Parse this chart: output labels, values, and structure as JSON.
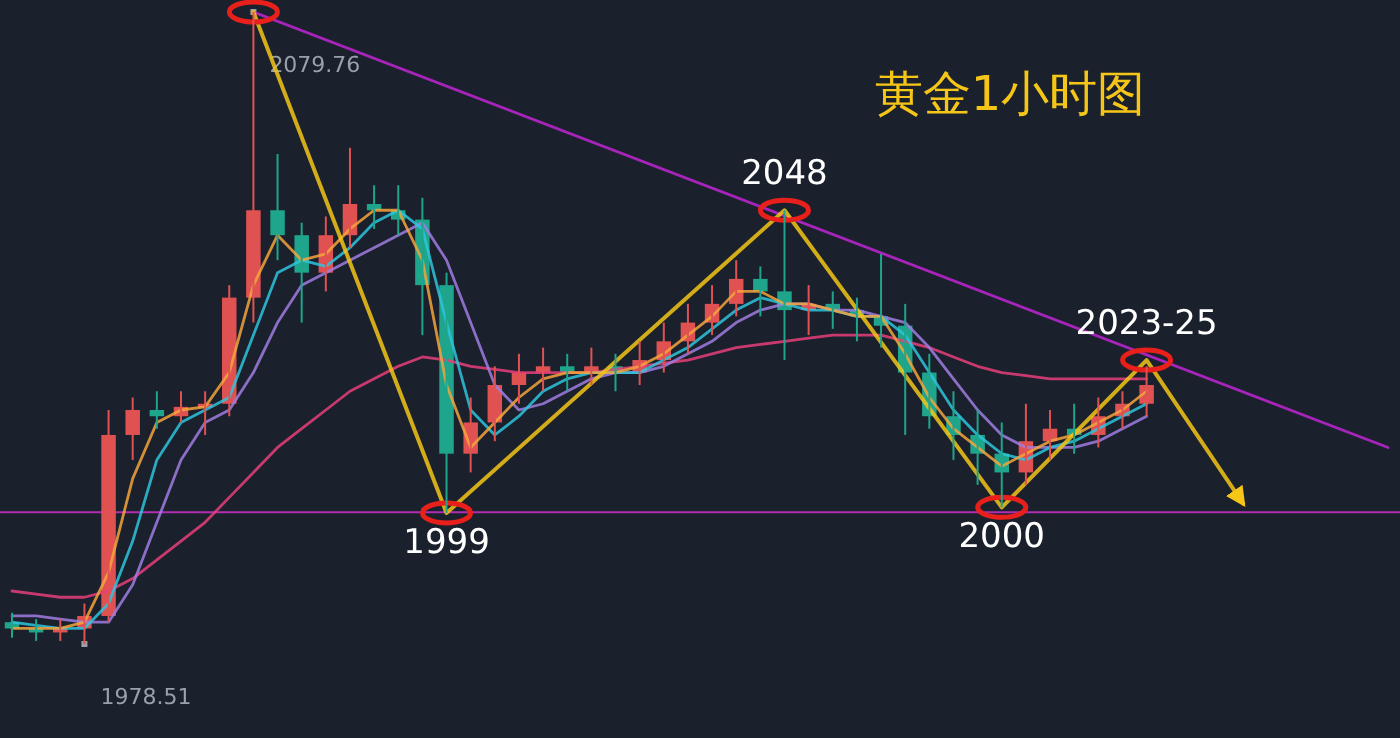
{
  "chart_data": {
    "type": "candlestick",
    "title": "黄金1小时图",
    "categories": [
      null,
      null,
      null,
      null,
      null,
      null,
      null,
      null,
      null,
      null,
      null,
      null,
      null,
      null,
      null,
      null,
      null,
      null,
      null,
      null,
      null,
      null,
      null,
      null,
      null,
      null,
      null,
      null,
      null,
      null,
      null,
      null,
      null,
      null,
      null,
      null,
      null,
      null,
      null,
      null,
      null,
      null,
      null,
      null,
      null,
      null,
      null,
      null,
      null,
      null,
      null,
      null,
      null,
      null,
      null,
      null,
      null,
      null
    ],
    "ohlc": [
      [
        1982,
        1983.5,
        1979.5,
        1981
      ],
      [
        1981,
        1982.5,
        1979,
        1980.5
      ],
      [
        1980.5,
        1982.5,
        1979,
        1981
      ],
      [
        1981,
        1985,
        1978.51,
        1983
      ],
      [
        1983,
        2016,
        1982,
        2012
      ],
      [
        2012,
        2018,
        2008,
        2016
      ],
      [
        2016,
        2019,
        2013,
        2015
      ],
      [
        2015,
        2019,
        2014,
        2016.5
      ],
      [
        2016.5,
        2019,
        2012,
        2017
      ],
      [
        2017,
        2036,
        2015,
        2034
      ],
      [
        2034,
        2079.76,
        2030,
        2048
      ],
      [
        2048,
        2057,
        2040,
        2044
      ],
      [
        2044,
        2046,
        2030,
        2038
      ],
      [
        2038,
        2047,
        2035,
        2044
      ],
      [
        2044,
        2058,
        2042,
        2049
      ],
      [
        2049,
        2052,
        2045,
        2048
      ],
      [
        2048,
        2052,
        2044,
        2046.5
      ],
      [
        2046.5,
        2050,
        2028,
        2036
      ],
      [
        2036,
        2038,
        1999.5,
        2009
      ],
      [
        2009,
        2018,
        2006,
        2014
      ],
      [
        2014,
        2023,
        2011,
        2020
      ],
      [
        2020,
        2025,
        2017,
        2022
      ],
      [
        2022,
        2026,
        2019,
        2023
      ],
      [
        2023,
        2025,
        2019,
        2022
      ],
      [
        2022,
        2026,
        2020,
        2023
      ],
      [
        2023,
        2025,
        2019,
        2022
      ],
      [
        2022,
        2027,
        2020,
        2024
      ],
      [
        2024,
        2030,
        2022,
        2027
      ],
      [
        2027,
        2033,
        2025,
        2030
      ],
      [
        2030,
        2036,
        2028,
        2033
      ],
      [
        2033,
        2040,
        2031,
        2037
      ],
      [
        2037,
        2039,
        2031,
        2035
      ],
      [
        2035,
        2048,
        2024,
        2032
      ],
      [
        2032,
        2036,
        2028,
        2033
      ],
      [
        2033,
        2035,
        2029,
        2032
      ],
      [
        2032,
        2034,
        2027,
        2031
      ],
      [
        2031,
        2041,
        2026,
        2029.5
      ],
      [
        2029.5,
        2033,
        2012,
        2022
      ],
      [
        2022,
        2025,
        2013,
        2015
      ],
      [
        2015,
        2019,
        2008,
        2012
      ],
      [
        2012,
        2016,
        2004,
        2009
      ],
      [
        2009,
        2014,
        2000.4,
        2006
      ],
      [
        2006,
        2017,
        2004,
        2011
      ],
      [
        2011,
        2016,
        2008,
        2013
      ],
      [
        2013,
        2017,
        2009,
        2012
      ],
      [
        2012,
        2018,
        2010,
        2015
      ],
      [
        2015,
        2019,
        2013,
        2017
      ],
      [
        2017,
        2023,
        2015,
        2020
      ],
      null,
      null,
      null,
      null,
      null,
      null,
      null,
      null,
      null,
      null
    ],
    "series": [
      {
        "type": "line",
        "color": "#e8407a",
        "values": [
          1987,
          1986.5,
          1986,
          1986,
          1987,
          1989,
          1992,
          1995,
          1998,
          2002,
          2006,
          2010,
          2013,
          2016,
          2019,
          2021,
          2023,
          2024.5,
          2024,
          2023,
          2022.5,
          2022,
          2022,
          2022,
          2022,
          2022.5,
          2023,
          2023.5,
          2024,
          2025,
          2026,
          2026.5,
          2027,
          2027.5,
          2028,
          2028,
          2028,
          2027,
          2026,
          2024.5,
          2023,
          2022,
          2021.5,
          2021,
          2021,
          2021,
          2021,
          2021,
          null,
          null,
          null,
          null,
          null,
          null,
          null,
          null,
          null,
          null
        ]
      },
      {
        "type": "line",
        "color": "#a07ce0",
        "values": [
          1983,
          1983,
          1982.5,
          1982,
          1982,
          1988,
          1998,
          2008,
          2014,
          2016,
          2022,
          2030,
          2036,
          2038,
          2040,
          2042,
          2044,
          2046,
          2040,
          2030,
          2020,
          2016,
          2017,
          2019,
          2021,
          2022,
          2022,
          2023,
          2025,
          2027,
          2030,
          2032,
          2033,
          2033,
          2032,
          2032,
          2031,
          2030,
          2026,
          2021,
          2016,
          2012,
          2010,
          2010,
          2010,
          2011,
          2013,
          2015,
          null,
          null,
          null,
          null,
          null,
          null,
          null,
          null,
          null,
          null
        ]
      },
      {
        "type": "line",
        "color": "#2ec4dc",
        "values": [
          1982,
          1981.5,
          1981,
          1981,
          1985,
          1995,
          2008,
          2014,
          2016,
          2018,
          2028,
          2038,
          2040,
          2039,
          2042,
          2046,
          2048,
          2045,
          2030,
          2016,
          2012,
          2015,
          2019,
          2021,
          2022,
          2022,
          2022,
          2024,
          2026,
          2029,
          2032,
          2034,
          2033,
          2032,
          2032,
          2031,
          2031,
          2028,
          2022,
          2016,
          2012,
          2009,
          2008,
          2010,
          2011,
          2013,
          2015,
          2017,
          null,
          null,
          null,
          null,
          null,
          null,
          null,
          null,
          null,
          null
        ]
      },
      {
        "type": "line",
        "color": "#f5a53c",
        "values": [
          1981,
          1981,
          1981,
          1982,
          1990,
          2005,
          2014,
          2016,
          2016.5,
          2022,
          2036,
          2044,
          2040,
          2041,
          2045,
          2048,
          2048,
          2040,
          2020,
          2010,
          2014,
          2018,
          2021,
          2022,
          2022,
          2022,
          2023,
          2025,
          2028,
          2031,
          2035,
          2035,
          2033,
          2033,
          2032,
          2031,
          2031,
          2025,
          2018,
          2013,
          2010,
          2007,
          2009,
          2011,
          2012,
          2014,
          2016,
          2019,
          null,
          null,
          null,
          null,
          null,
          null,
          null,
          null,
          null,
          null
        ]
      },
      {
        "type": "line",
        "color": "#c026d3",
        "values": [
          null,
          null,
          null,
          null,
          null,
          null,
          null,
          null,
          null,
          null,
          2079.76,
          null,
          null,
          null,
          null,
          null,
          null,
          null,
          null,
          null,
          null,
          null,
          null,
          null,
          null,
          null,
          null,
          null,
          null,
          null,
          null,
          null,
          null,
          null,
          null,
          null,
          null,
          null,
          null,
          null,
          null,
          null,
          null,
          null,
          null,
          null,
          null,
          null,
          null,
          null,
          null,
          null,
          null,
          null,
          null,
          null,
          null,
          2010
        ]
      },
      {
        "type": "line",
        "color": "#f5c518",
        "values": [
          null,
          null,
          null,
          null,
          null,
          null,
          null,
          null,
          null,
          null,
          2079.76,
          null,
          null,
          null,
          null,
          null,
          null,
          null,
          1999.5,
          null,
          null,
          null,
          null,
          null,
          null,
          null,
          null,
          null,
          null,
          null,
          null,
          null,
          2048,
          null,
          null,
          null,
          null,
          null,
          null,
          null,
          null,
          2000.4,
          null,
          null,
          null,
          null,
          null,
          2024,
          null,
          null,
          null,
          2001,
          null,
          null,
          null,
          null,
          null,
          null
        ]
      },
      {
        "type": "scatter",
        "marker": "circle",
        "color": "#e8201c",
        "values": [
          null,
          null,
          null,
          null,
          null,
          null,
          null,
          null,
          null,
          null,
          2079.76,
          null,
          null,
          null,
          null,
          null,
          null,
          null,
          1999.5,
          null,
          null,
          null,
          null,
          null,
          null,
          null,
          null,
          null,
          null,
          null,
          null,
          null,
          2048,
          null,
          null,
          null,
          null,
          null,
          null,
          null,
          null,
          2000.4,
          null,
          null,
          null,
          null,
          null,
          2024,
          null,
          null,
          null,
          null,
          null,
          null,
          null,
          null,
          null,
          null
        ],
        "value_labels": [
          null,
          null,
          null,
          null,
          null,
          null,
          null,
          null,
          null,
          null,
          null,
          null,
          null,
          null,
          null,
          null,
          null,
          null,
          "1999",
          null,
          null,
          null,
          null,
          null,
          null,
          null,
          null,
          null,
          null,
          null,
          null,
          null,
          "2048",
          null,
          null,
          null,
          null,
          null,
          null,
          null,
          null,
          "2000",
          null,
          null,
          null,
          null,
          null,
          "2023-25",
          null,
          null,
          null,
          null,
          null,
          null,
          null,
          null,
          null,
          null
        ]
      },
      {
        "type": "scatter",
        "marker": "square",
        "color": "#9aa0a8",
        "values": [
          null,
          null,
          null,
          1978.51,
          null,
          null,
          null,
          null,
          null,
          null,
          2079.76,
          null,
          null,
          null,
          null,
          null,
          null,
          null,
          null,
          null,
          null,
          null,
          null,
          null,
          null,
          null,
          null,
          null,
          null,
          null,
          null,
          null,
          null,
          null,
          null,
          null,
          null,
          null,
          null,
          null,
          null,
          null,
          null,
          null,
          null,
          null,
          null,
          null,
          null,
          null,
          null,
          null,
          null,
          null,
          null,
          null,
          null,
          null
        ],
        "value_labels": [
          null,
          null,
          null,
          "1978.51",
          null,
          null,
          null,
          null,
          null,
          null,
          "2079.76",
          null,
          null,
          null,
          null,
          null,
          null,
          null,
          null,
          null,
          null,
          null,
          null,
          null,
          null,
          null,
          null,
          null,
          null,
          null,
          null,
          null,
          null,
          null,
          null,
          null,
          null,
          null,
          null,
          null,
          null,
          null,
          null,
          null,
          null,
          null,
          null,
          null,
          null,
          null,
          null,
          null,
          null,
          null,
          null,
          null,
          null,
          null
        ]
      }
    ],
    "ref_lines": [
      {
        "axis": "y",
        "value": 1999.6,
        "color": "#b02cb0"
      }
    ]
  }
}
